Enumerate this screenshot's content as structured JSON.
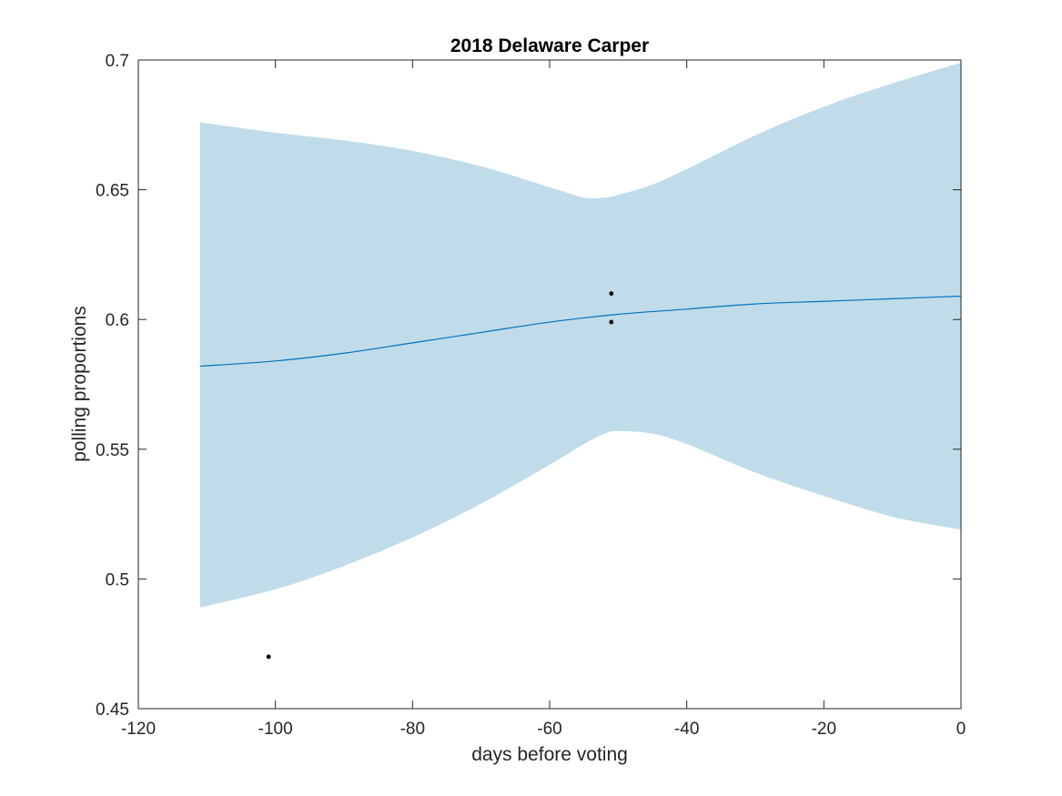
{
  "chart_data": {
    "type": "line",
    "title": "2018 Delaware Carper",
    "xlabel": "days before voting",
    "ylabel": "polling proportions",
    "xlim": [
      -120,
      0
    ],
    "ylim": [
      0.45,
      0.7
    ],
    "xticks": [
      -120,
      -100,
      -80,
      -60,
      -40,
      -20,
      0
    ],
    "yticks": [
      0.45,
      0.5,
      0.55,
      0.6,
      0.65,
      0.7
    ],
    "xtick_labels": [
      "-120",
      "-100",
      "-80",
      "-60",
      "-40",
      "-20",
      "0"
    ],
    "ytick_labels": [
      "0.45",
      "0.5",
      "0.55",
      "0.6",
      "0.65",
      "0.7"
    ],
    "grid": false,
    "band": {
      "x": [
        -111,
        -100,
        -90,
        -80,
        -70,
        -60,
        -55,
        -52,
        -50,
        -45,
        -40,
        -30,
        -20,
        -10,
        0
      ],
      "upper": [
        0.676,
        0.672,
        0.669,
        0.665,
        0.659,
        0.651,
        0.647,
        0.647,
        0.648,
        0.652,
        0.658,
        0.671,
        0.682,
        0.691,
        0.699
      ],
      "lower": [
        0.489,
        0.496,
        0.505,
        0.516,
        0.529,
        0.544,
        0.552,
        0.556,
        0.557,
        0.556,
        0.552,
        0.541,
        0.532,
        0.524,
        0.519
      ],
      "color": "#c0dcea"
    },
    "series": [
      {
        "x": [
          -111,
          -100,
          -90,
          -80,
          -70,
          -60,
          -50,
          -40,
          -30,
          -20,
          -10,
          0
        ],
        "values": [
          0.582,
          0.584,
          0.587,
          0.591,
          0.595,
          0.599,
          0.602,
          0.604,
          0.606,
          0.607,
          0.608,
          0.609
        ],
        "color": "#0072bd"
      }
    ],
    "points": {
      "x": [
        -101,
        -51,
        -51
      ],
      "y": [
        0.47,
        0.61,
        0.599
      ],
      "color": "#000000"
    }
  }
}
